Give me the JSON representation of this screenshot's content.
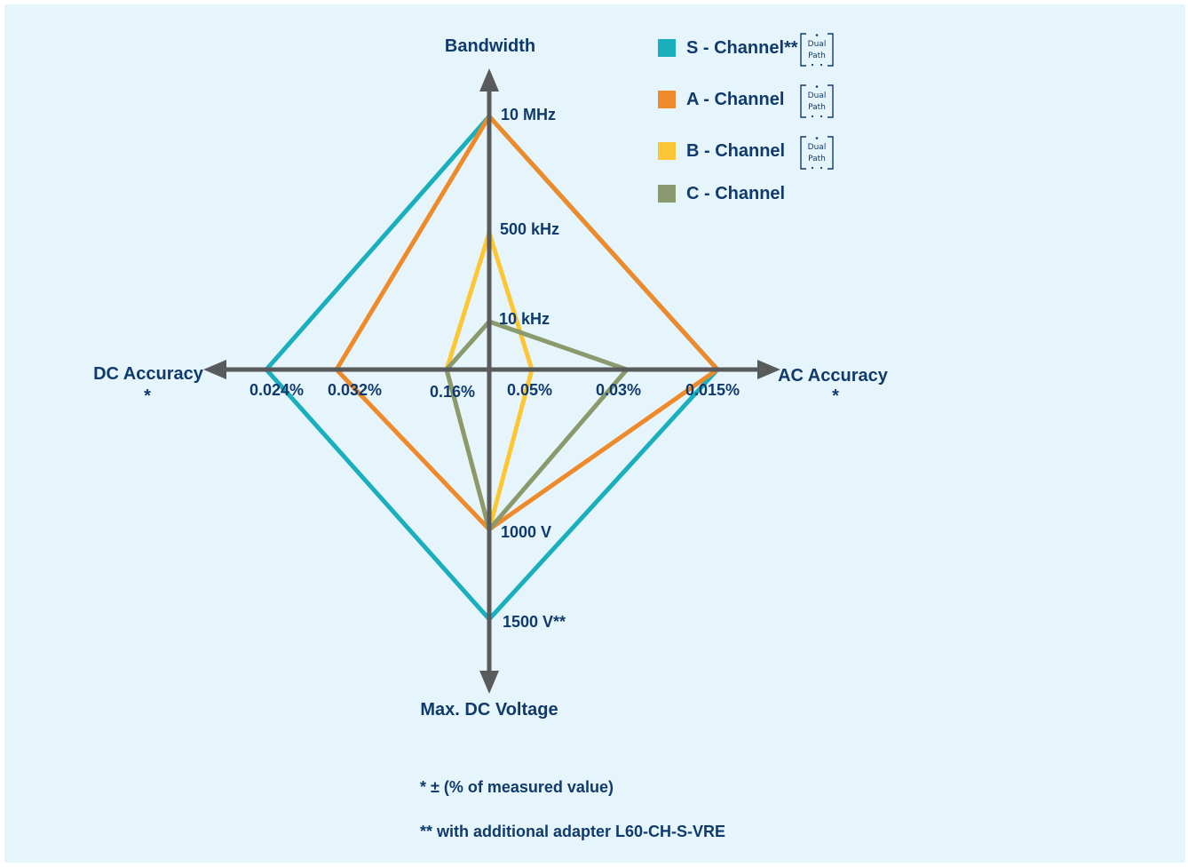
{
  "chart_data": {
    "type": "radar",
    "axes": [
      {
        "key": "bandwidth",
        "label": "Bandwidth",
        "note": "",
        "ticks": [
          "10 kHz",
          "500 kHz",
          "10 MHz"
        ]
      },
      {
        "key": "ac_accuracy",
        "label": "AC Accuracy",
        "note": "*",
        "ticks": [
          "0.05%",
          "0.03%",
          "0.015%"
        ]
      },
      {
        "key": "max_dc_voltage",
        "label": "Max. DC Voltage",
        "note": "",
        "ticks": [
          "1000 V",
          "1500 V**"
        ]
      },
      {
        "key": "dc_accuracy",
        "label": "DC Accuracy",
        "note": "*",
        "ticks": [
          "0.16%",
          "0.032%",
          "0.024%"
        ]
      }
    ],
    "series": [
      {
        "name": "S - Channel**",
        "color": "#1aafbd",
        "dual_path": true,
        "values": {
          "bandwidth": "10 MHz",
          "ac_accuracy": "0.015%",
          "max_dc_voltage": "1500 V**",
          "dc_accuracy": "0.024%"
        }
      },
      {
        "name": "A - Channel",
        "color": "#ee8a2a",
        "dual_path": true,
        "values": {
          "bandwidth": "10 MHz",
          "ac_accuracy": "0.015%",
          "max_dc_voltage": "1000 V",
          "dc_accuracy": "0.032%"
        }
      },
      {
        "name": "B - Channel",
        "color": "#fdc634",
        "dual_path": true,
        "values": {
          "bandwidth": "500 kHz",
          "ac_accuracy": "0.05%",
          "max_dc_voltage": "1000 V",
          "dc_accuracy": "0.16%"
        }
      },
      {
        "name": "C - Channel",
        "color": "#8a9a6c",
        "dual_path": false,
        "values": {
          "bandwidth": "10 kHz",
          "ac_accuracy": "0.03%",
          "max_dc_voltage": "1000 V",
          "dc_accuracy": "0.16%"
        }
      }
    ],
    "badge": {
      "line1": "Dual",
      "line2": "Path"
    },
    "axis_color": "#595a5c",
    "text_color": "#0f3a6b",
    "legend_position": "top-right"
  },
  "footnotes": [
    "* ± (% of measured value)",
    "** with additional adapter L60-CH-S-VRE"
  ],
  "colors": {
    "background": "#e6f5fb"
  }
}
